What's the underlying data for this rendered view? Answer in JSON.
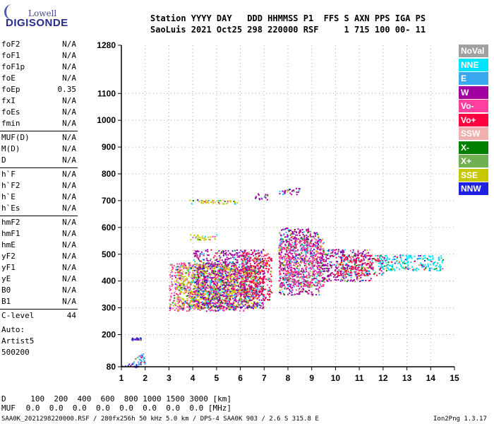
{
  "logo": {
    "top": "Lowell",
    "main": "DIGISONDE"
  },
  "header": {
    "line1": "Station YYYY DAY   DDD HHMMSS P1  FFS S AXN PPS IGA PS",
    "line2": "SaoLuis 2021 Oct25 298 220000 RSF     1 715 100 00- 11"
  },
  "params": [
    {
      "name": "foF2",
      "value": "N/A"
    },
    {
      "name": "foF1",
      "value": "N/A"
    },
    {
      "name": "foF1p",
      "value": "N/A"
    },
    {
      "name": "foE",
      "value": "N/A"
    },
    {
      "name": "foEp",
      "value": "0.35"
    },
    {
      "name": "fxI",
      "value": "N/A"
    },
    {
      "name": "foEs",
      "value": "N/A"
    },
    {
      "name": "fmin",
      "value": "N/A"
    },
    {
      "name": "MUF(D)",
      "value": "N/A"
    },
    {
      "name": "M(D)",
      "value": "N/A"
    },
    {
      "name": "D",
      "value": "N/A"
    },
    {
      "name": "h`F",
      "value": "N/A"
    },
    {
      "name": "h`F2",
      "value": "N/A"
    },
    {
      "name": "h`E",
      "value": "N/A"
    },
    {
      "name": "h`Es",
      "value": "N/A"
    },
    {
      "name": "hmF2",
      "value": "N/A"
    },
    {
      "name": "hmF1",
      "value": "N/A"
    },
    {
      "name": "hmE",
      "value": "N/A"
    },
    {
      "name": "yF2",
      "value": "N/A"
    },
    {
      "name": "yF1",
      "value": "N/A"
    },
    {
      "name": "yE",
      "value": "N/A"
    },
    {
      "name": "B0",
      "value": "N/A"
    },
    {
      "name": "B1",
      "value": "N/A"
    },
    {
      "name": "C-level",
      "value": "44"
    }
  ],
  "auto": {
    "label": "Auto:",
    "artist": "Artist5",
    "code": "500200"
  },
  "legend": [
    {
      "label": "NoVal",
      "color": "#a0a0a0"
    },
    {
      "label": "NNE",
      "color": "#00e5ff"
    },
    {
      "label": "E",
      "color": "#3aa8f0"
    },
    {
      "label": "W",
      "color": "#a000a0"
    },
    {
      "label": "Vo-",
      "color": "#ff40a0"
    },
    {
      "label": "Vo+",
      "color": "#ff0040"
    },
    {
      "label": "SSW",
      "color": "#f0b0b0"
    },
    {
      "label": "X-",
      "color": "#008000"
    },
    {
      "label": "X+",
      "color": "#70b050"
    },
    {
      "label": "SSE",
      "color": "#c8c800"
    },
    {
      "label": "NNW",
      "color": "#2020e0"
    }
  ],
  "bottom": {
    "d_label": "D",
    "d_values": "  100  200  400  600  800 1000 1500 3000 [km]",
    "muf_label": "MUF",
    "muf_values": " 0.0  0.0  0.0  0.0  0.0  0.0  0.0  0.0 [MHz]"
  },
  "footer": {
    "left": "SAA0K_2021298220000.RSF / 280fx256h 50 kHz 5.0 km / DPS-4 SAA0K 903 / 2.6 S 315.8 E",
    "right": "Ion2Png 1.3.17"
  },
  "chart_data": {
    "type": "scatter",
    "xlim": [
      1,
      15
    ],
    "ylim": [
      80,
      1280
    ],
    "x_ticks": [
      1,
      2,
      3,
      4,
      5,
      6,
      7,
      8,
      9,
      10,
      11,
      12,
      13,
      14,
      15
    ],
    "y_ticks": [
      80,
      200,
      300,
      400,
      500,
      600,
      700,
      800,
      900,
      1000,
      1100,
      1280
    ],
    "xlabel": "",
    "ylabel": "",
    "clusters": [
      {
        "x": [
          1.0,
          1.9
        ],
        "y": [
          80,
          95
        ],
        "color": "#2020e0"
      },
      {
        "x": [
          1.5,
          2.0
        ],
        "y": [
          90,
          130
        ],
        "color": "#3aa8f0"
      },
      {
        "x": [
          1.4,
          1.8
        ],
        "y": [
          180,
          190
        ],
        "color": "#2020e0"
      },
      {
        "x": [
          3.0,
          6.2
        ],
        "y": [
          290,
          470
        ],
        "color": "#ff40a0"
      },
      {
        "x": [
          3.3,
          6.8
        ],
        "y": [
          300,
          460
        ],
        "color": "#c8c800"
      },
      {
        "x": [
          4.0,
          7.0
        ],
        "y": [
          300,
          520
        ],
        "color": "#a000a0"
      },
      {
        "x": [
          6.0,
          7.3
        ],
        "y": [
          330,
          510
        ],
        "color": "#ff0040"
      },
      {
        "x": [
          7.6,
          9.3
        ],
        "y": [
          350,
          600
        ],
        "color": "#a000a0"
      },
      {
        "x": [
          7.6,
          9.5
        ],
        "y": [
          380,
          560
        ],
        "color": "#ff40a0"
      },
      {
        "x": [
          9.3,
          11.5
        ],
        "y": [
          400,
          520
        ],
        "color": "#a000a0"
      },
      {
        "x": [
          10.0,
          12.0
        ],
        "y": [
          420,
          500
        ],
        "color": "#ff0040"
      },
      {
        "x": [
          11.8,
          14.5
        ],
        "y": [
          440,
          500
        ],
        "color": "#00e5ff"
      },
      {
        "x": [
          3.8,
          6.0
        ],
        "y": [
          690,
          705
        ],
        "color": "#c8c800"
      },
      {
        "x": [
          3.8,
          5.0
        ],
        "y": [
          555,
          575
        ],
        "color": "#c8c800"
      },
      {
        "x": [
          6.6,
          7.2
        ],
        "y": [
          705,
          730
        ],
        "color": "#a000a0"
      },
      {
        "x": [
          7.6,
          8.5
        ],
        "y": [
          725,
          750
        ],
        "color": "#a000a0"
      }
    ]
  }
}
